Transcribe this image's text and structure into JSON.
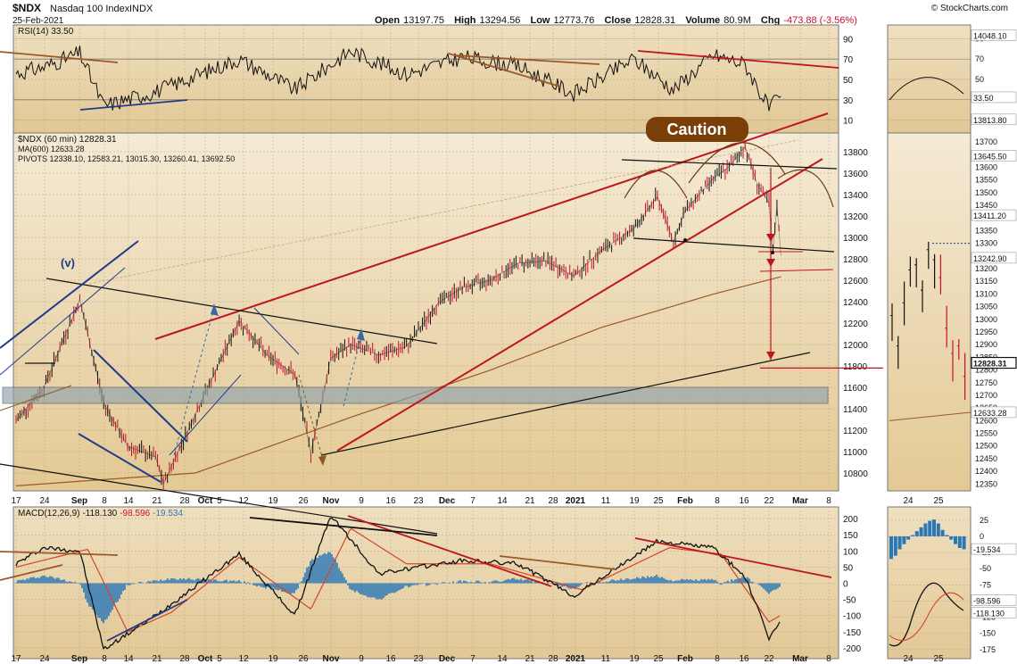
{
  "header": {
    "symbol": "$NDX",
    "name": "Nasdaq 100 Index",
    "exchange": "INDX",
    "date": "25-Feb-2021",
    "source": "© StockCharts.com",
    "open_label": "Open",
    "open": "13197.75",
    "high_label": "High",
    "high": "13294.56",
    "low_label": "Low",
    "low": "12773.76",
    "close_label": "Close",
    "close": "12828.31",
    "volume_label": "Volume",
    "volume": "80.9M",
    "chg_label": "Chg",
    "chg": "-473.88 (-3.56%)"
  },
  "colors": {
    "panel_bg": "#e7cf9f",
    "panel_bg_light": "#f6ecd8",
    "up_bar": "#111111",
    "down_bar": "#c8102e",
    "trendline_red": "#c0151b",
    "trendline_blue": "#1f3b8a",
    "macd_hist": "#2b78b8",
    "caution_fill": "#7a3e08",
    "support_band": "#8fa3ad"
  },
  "chart_data": [
    {
      "id": "price-main",
      "type": "line",
      "title": "$NDX (60 min) 12828.31",
      "legend": [
        "MA(600) 12633.28",
        "PIVOTS 12338.10, 12583.21, 13015.30, 13260.41, 13692.50"
      ],
      "x_ticks": [
        "17",
        "24",
        "Sep",
        "8",
        "14",
        "21",
        "28",
        "Oct",
        "5",
        "12",
        "19",
        "26",
        "Nov",
        "9",
        "16",
        "23",
        "Dec",
        "7",
        "14",
        "21",
        "28",
        "2021",
        "11",
        "19",
        "25",
        "Feb",
        "8",
        "16",
        "22",
        "Mar",
        "8"
      ],
      "y_ticks": [
        13800,
        13600,
        13400,
        13200,
        13000,
        12800,
        12600,
        12400,
        12200,
        12000,
        11800,
        11600,
        11400,
        11200,
        11000,
        10800
      ],
      "ylim": [
        10650,
        13950
      ],
      "annotations": [
        "(v)",
        "Caution"
      ],
      "series": [
        {
          "name": "$NDX",
          "x": [
            "Aug 17",
            "Aug 24",
            "Sep 2",
            "Sep 8",
            "Sep 14",
            "Sep 21",
            "Sep 23",
            "Oct 1",
            "Oct 12",
            "Oct 19",
            "Oct 26",
            "Oct 30",
            "Nov 4",
            "Nov 9",
            "Nov 16",
            "Nov 23",
            "Dec 1",
            "Dec 7",
            "Dec 14",
            "Dec 21",
            "Dec 28",
            "Jan 4",
            "Jan 11",
            "Jan 19",
            "Jan 25",
            "Jan 29",
            "Feb 1",
            "Feb 8",
            "Feb 12",
            "Feb 16",
            "Feb 19",
            "Feb 22",
            "Feb 23",
            "Feb 24",
            "Feb 25"
          ],
          "values": [
            11290,
            11600,
            12420,
            11450,
            11050,
            10950,
            10700,
            11350,
            12220,
            11900,
            11720,
            10990,
            11870,
            12000,
            11900,
            11980,
            12390,
            12530,
            12600,
            12760,
            12780,
            12640,
            12880,
            13080,
            13380,
            12960,
            13250,
            13550,
            13660,
            13850,
            13500,
            13320,
            12870,
            13300,
            12828
          ]
        },
        {
          "name": "MA(600)",
          "x": [
            "Aug 17",
            "Oct 1",
            "Nov 9",
            "Dec 14",
            "Jan 11",
            "Feb 8",
            "Feb 25"
          ],
          "values": [
            10680,
            10800,
            11320,
            11760,
            12160,
            12470,
            12633
          ]
        }
      ],
      "pivots": [
        12338.1,
        12583.21,
        13015.3,
        13260.41,
        13692.5
      ]
    },
    {
      "id": "price-inset",
      "type": "line",
      "x_ticks": [
        "24",
        "25"
      ],
      "right_labels": [
        "13645.50",
        "13411.20",
        "13242.90",
        "12828.31",
        "12633.28"
      ],
      "y_ticks": [
        13700,
        13650,
        13600,
        13550,
        13500,
        13450,
        13400,
        13350,
        13300,
        13250,
        13200,
        13150,
        13100,
        13050,
        13000,
        12950,
        12900,
        12850,
        12800,
        12750,
        12700,
        12650,
        12600,
        12550,
        12500,
        12450,
        12400,
        12350
      ],
      "ylim": [
        12330,
        13725
      ]
    },
    {
      "id": "rsi-main",
      "type": "line",
      "title": "RSI(14) 33.50",
      "y_ticks": [
        90,
        70,
        50,
        30,
        10
      ],
      "ylim": [
        0,
        100
      ],
      "series": [
        {
          "name": "RSI(14)",
          "x": [
            "Aug 17",
            "Aug 24",
            "Sep 2",
            "Sep 8",
            "Sep 21",
            "Oct 12",
            "Oct 26",
            "Nov 9",
            "Nov 23",
            "Dec 7",
            "Dec 21",
            "Jan 4",
            "Jan 19",
            "Jan 29",
            "Feb 8",
            "Feb 16",
            "Feb 22",
            "Feb 25"
          ],
          "values": [
            56,
            62,
            76,
            24,
            38,
            70,
            40,
            78,
            55,
            72,
            63,
            36,
            70,
            40,
            74,
            65,
            21,
            33.5
          ]
        }
      ]
    },
    {
      "id": "rsi-inset",
      "type": "line",
      "y_ticks": [
        90,
        70,
        50,
        30,
        10
      ],
      "right_labels": [
        "14048.10",
        "33.50",
        "13813.80"
      ],
      "ylim": [
        0,
        100
      ]
    },
    {
      "id": "macd-main",
      "type": "line",
      "title": "MACD(12,26,9)",
      "values_label": [
        "-118.130",
        "-98.596",
        "-19.534"
      ],
      "x_ticks": [
        "17",
        "24",
        "Sep",
        "8",
        "14",
        "21",
        "28",
        "Oct",
        "5",
        "12",
        "19",
        "26",
        "Nov",
        "9",
        "16",
        "23",
        "Dec",
        "7",
        "14",
        "21",
        "28",
        "2021",
        "11",
        "19",
        "25",
        "Feb",
        "8",
        "16",
        "22",
        "Mar",
        "8"
      ],
      "y_ticks": [
        200,
        150,
        100,
        50,
        0,
        -50,
        -100,
        -150,
        -200
      ],
      "ylim": [
        -225,
        225
      ],
      "series": [
        {
          "name": "MACD",
          "x": [
            "Aug 17",
            "Aug 24",
            "Sep 2",
            "Sep 8",
            "Sep 21",
            "Oct 12",
            "Oct 26",
            "Nov 4",
            "Nov 16",
            "Dec 7",
            "Dec 21",
            "Jan 4",
            "Jan 25",
            "Feb 8",
            "Feb 16",
            "Feb 22",
            "Feb 25"
          ],
          "values": [
            60,
            110,
            100,
            -205,
            -100,
            90,
            -100,
            210,
            30,
            70,
            60,
            -40,
            130,
            110,
            20,
            -170,
            -118.13
          ]
        },
        {
          "name": "Signal",
          "x": [
            "Aug 17",
            "Sep 4",
            "Sep 14",
            "Sep 25",
            "Oct 12",
            "Oct 30",
            "Nov 9",
            "Nov 23",
            "Dec 14",
            "Jan 6",
            "Jan 28",
            "Feb 10",
            "Feb 22",
            "Feb 25"
          ],
          "values": [
            50,
            105,
            -150,
            -90,
            80,
            -80,
            170,
            60,
            60,
            -20,
            110,
            90,
            -120,
            -98.596
          ]
        },
        {
          "name": "Histogram",
          "values": [
            -19.534
          ]
        }
      ]
    },
    {
      "id": "macd-inset",
      "type": "line",
      "x_ticks": [
        "24",
        "25"
      ],
      "y_ticks": [
        25,
        0,
        -25,
        -50,
        -75,
        -100,
        -125,
        -150,
        -175
      ],
      "right_labels": [
        "-19.534",
        "-98.596",
        "-118.130"
      ],
      "ylim": [
        -185,
        40
      ]
    }
  ]
}
